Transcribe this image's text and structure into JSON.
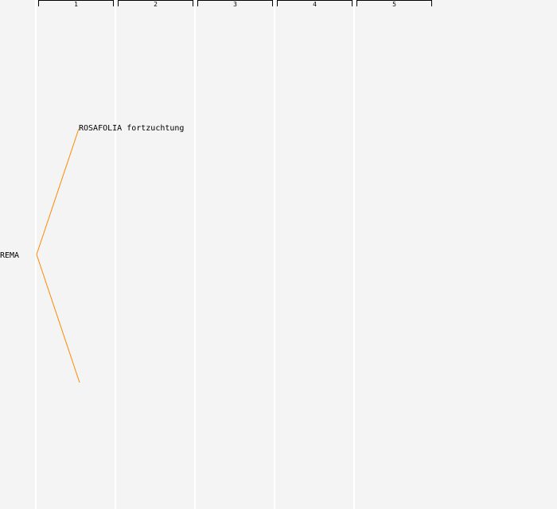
{
  "generations": [
    "1",
    "2",
    "3",
    "4",
    "5"
  ],
  "root": {
    "name": "REMA"
  },
  "parents": [
    {
      "name": "ROSAFOLIA fortzuchtung"
    },
    {
      "name": ""
    }
  ],
  "colors": {
    "link": "#ff8800",
    "background": "#f4f4f4"
  }
}
